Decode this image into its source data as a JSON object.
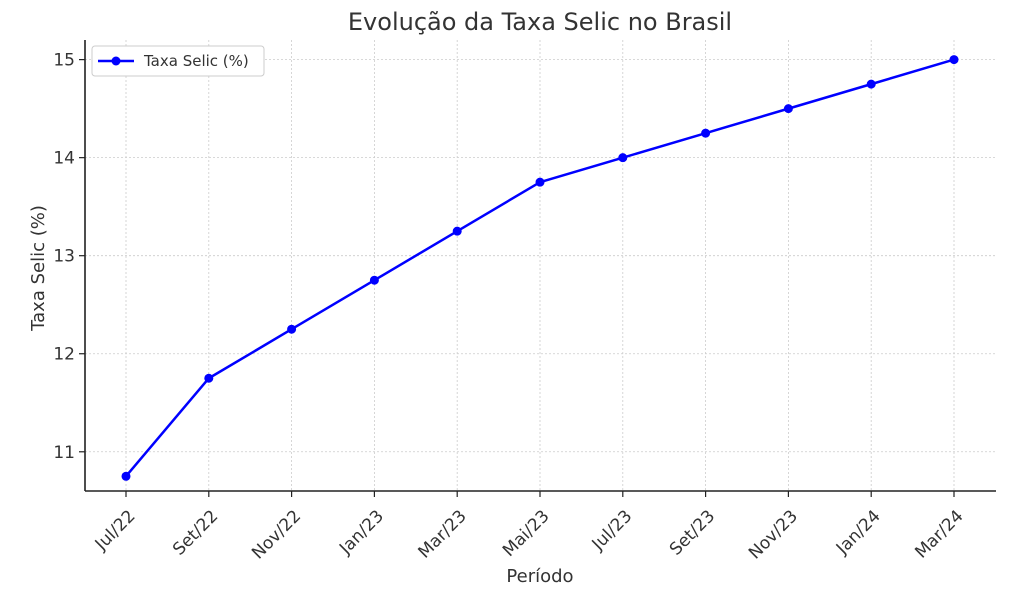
{
  "chart_data": {
    "type": "line",
    "title": "Evolução da Taxa Selic no Brasil",
    "xlabel": "Período",
    "ylabel": "Taxa Selic (%)",
    "categories": [
      "Jul/22",
      "Set/22",
      "Nov/22",
      "Jan/23",
      "Mar/23",
      "Mai/23",
      "Jul/23",
      "Set/23",
      "Nov/23",
      "Jan/24",
      "Mar/24"
    ],
    "series": [
      {
        "name": "Taxa Selic (%)",
        "values": [
          10.75,
          11.75,
          12.25,
          12.75,
          13.25,
          13.75,
          14.0,
          14.25,
          14.5,
          14.75,
          15.0
        ],
        "color": "#0000ff"
      }
    ],
    "yticks": [
      11,
      12,
      13,
      14,
      15
    ],
    "ylim": [
      10.6,
      15.2
    ],
    "grid": true,
    "legend_position": "top-left"
  }
}
